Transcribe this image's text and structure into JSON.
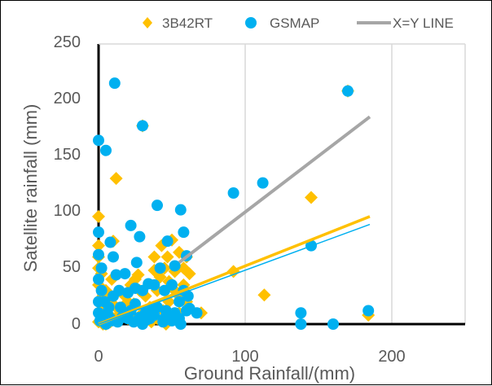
{
  "chart_data": {
    "type": "scatter",
    "title": "",
    "xlabel": "Ground Rainfall/(mm)",
    "ylabel": "Satellite rainfall (mm)",
    "xlim": [
      0,
      250
    ],
    "ylim": [
      0,
      250
    ],
    "xticks": [
      "0",
      "100",
      "200"
    ],
    "yticks": [
      "0",
      "50",
      "100",
      "150",
      "200",
      "250"
    ],
    "grid": "vertical",
    "legend_position": "top",
    "legend": [
      "3B42RT",
      "GSMAP",
      "X=Y LINE"
    ],
    "series": [
      {
        "name": "3B42RT",
        "marker": "diamond",
        "color": "#FFC000",
        "points": [
          [
            0,
            96
          ],
          [
            12,
            130
          ],
          [
            30,
            177
          ],
          [
            170,
            208
          ],
          [
            145,
            113
          ],
          [
            113,
            26
          ],
          [
            92,
            47
          ],
          [
            184,
            8
          ],
          [
            70,
            10
          ],
          [
            10,
            74
          ],
          [
            20,
            20
          ],
          [
            27,
            44
          ],
          [
            38,
            60
          ],
          [
            42,
            42
          ],
          [
            47,
            60
          ],
          [
            50,
            75
          ],
          [
            52,
            47
          ],
          [
            55,
            64
          ],
          [
            60,
            60
          ],
          [
            5,
            30
          ],
          [
            8,
            20
          ],
          [
            15,
            10
          ],
          [
            18,
            25
          ],
          [
            22,
            35
          ],
          [
            25,
            40
          ],
          [
            28,
            30
          ],
          [
            32,
            25
          ],
          [
            35,
            15
          ],
          [
            40,
            30
          ],
          [
            45,
            50
          ],
          [
            48,
            20
          ],
          [
            55,
            25
          ],
          [
            58,
            35
          ],
          [
            60,
            20
          ],
          [
            0,
            35
          ],
          [
            1,
            10
          ],
          [
            2,
            5
          ],
          [
            3,
            25
          ],
          [
            0,
            2
          ],
          [
            5,
            0
          ],
          [
            10,
            5
          ],
          [
            12,
            15
          ],
          [
            14,
            3
          ],
          [
            25,
            5
          ],
          [
            30,
            10
          ],
          [
            40,
            5
          ],
          [
            50,
            5
          ],
          [
            55,
            10
          ],
          [
            0,
            60
          ],
          [
            0,
            50
          ],
          [
            2,
            45
          ],
          [
            1,
            18
          ],
          [
            4,
            12
          ],
          [
            7,
            8
          ],
          [
            20,
            5
          ],
          [
            33,
            8
          ],
          [
            44,
            12
          ],
          [
            52,
            30
          ],
          [
            58,
            50
          ],
          [
            62,
            45
          ],
          [
            38,
            48
          ],
          [
            43,
            70
          ],
          [
            48,
            38
          ],
          [
            24,
            18
          ],
          [
            16,
            28
          ],
          [
            6,
            15
          ],
          [
            9,
            40
          ],
          [
            0,
            70
          ],
          [
            3,
            0
          ],
          [
            8,
            2
          ],
          [
            36,
            2
          ],
          [
            46,
            0
          ]
        ]
      },
      {
        "name": "GSMAP",
        "marker": "circle",
        "color": "#00B0F0",
        "points": [
          [
            11,
            215
          ],
          [
            0,
            164
          ],
          [
            5,
            155
          ],
          [
            30,
            177
          ],
          [
            170,
            208
          ],
          [
            112,
            126
          ],
          [
            92,
            117
          ],
          [
            145,
            70
          ],
          [
            138,
            10
          ],
          [
            138,
            0
          ],
          [
            160,
            0
          ],
          [
            184,
            12
          ],
          [
            40,
            106
          ],
          [
            56,
            102
          ],
          [
            22,
            88
          ],
          [
            10,
            60
          ],
          [
            0,
            82
          ],
          [
            0,
            62
          ],
          [
            8,
            73
          ],
          [
            28,
            78
          ],
          [
            47,
            74
          ],
          [
            52,
            52
          ],
          [
            58,
            82
          ],
          [
            60,
            61
          ],
          [
            12,
            44
          ],
          [
            30,
            30
          ],
          [
            38,
            35
          ],
          [
            45,
            30
          ],
          [
            50,
            35
          ],
          [
            55,
            20
          ],
          [
            60,
            12
          ],
          [
            62,
            14
          ],
          [
            67,
            10
          ],
          [
            42,
            50
          ],
          [
            46,
            12
          ],
          [
            0,
            40
          ],
          [
            2,
            30
          ],
          [
            4,
            20
          ],
          [
            6,
            10
          ],
          [
            8,
            5
          ],
          [
            10,
            25
          ],
          [
            15,
            15
          ],
          [
            18,
            8
          ],
          [
            20,
            5
          ],
          [
            22,
            12
          ],
          [
            25,
            18
          ],
          [
            28,
            6
          ],
          [
            32,
            10
          ],
          [
            35,
            5
          ],
          [
            38,
            8
          ],
          [
            40,
            15
          ],
          [
            45,
            5
          ],
          [
            48,
            8
          ],
          [
            50,
            3
          ],
          [
            52,
            10
          ],
          [
            55,
            5
          ],
          [
            58,
            30
          ],
          [
            20,
            28
          ],
          [
            25,
            32
          ],
          [
            0,
            10
          ],
          [
            1,
            3
          ],
          [
            3,
            5
          ],
          [
            5,
            0
          ],
          [
            7,
            15
          ],
          [
            9,
            3
          ],
          [
            13,
            2
          ],
          [
            16,
            6
          ],
          [
            24,
            2
          ],
          [
            30,
            0
          ],
          [
            33,
            4
          ],
          [
            36,
            12
          ],
          [
            44,
            2
          ],
          [
            56,
            0
          ],
          [
            61,
            25
          ],
          [
            14,
            30
          ],
          [
            18,
            45
          ],
          [
            0,
            20
          ],
          [
            2,
            50
          ],
          [
            26,
            55
          ],
          [
            34,
            36
          ]
        ]
      }
    ],
    "lines": [
      {
        "name": "X=Y LINE",
        "color": "#A6A6A6",
        "x": [
          55,
          185
        ],
        "y": [
          55,
          185
        ]
      },
      {
        "name": "3B42RT trend",
        "color": "#FFC000",
        "x": [
          0,
          185
        ],
        "y": [
          0,
          96
        ]
      },
      {
        "name": "GSMAP trend",
        "color": "#00B0F0",
        "x": [
          0,
          185
        ],
        "y": [
          0,
          89
        ]
      }
    ]
  }
}
